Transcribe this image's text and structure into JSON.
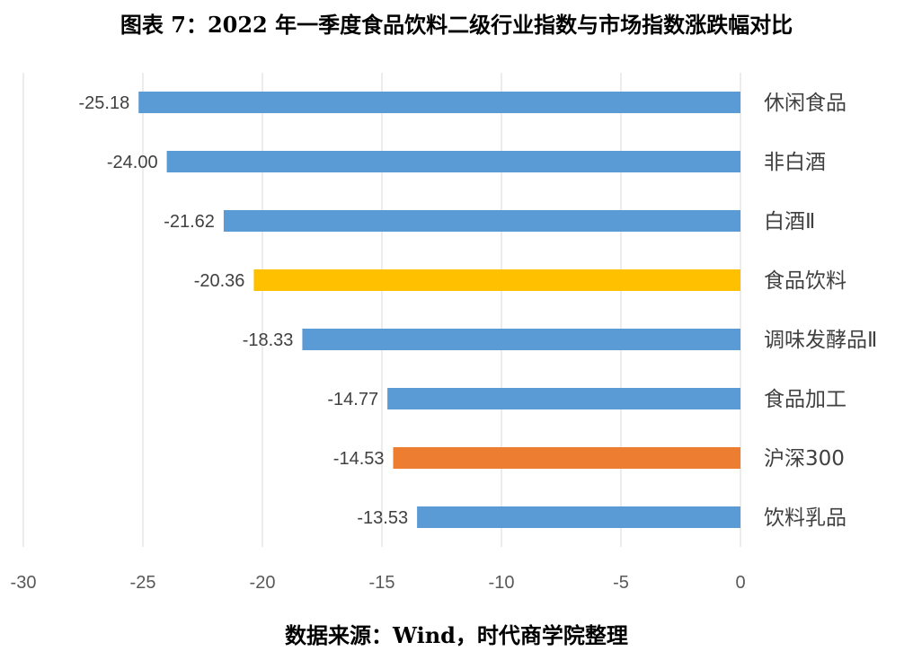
{
  "title": "图表 7：2022 年一季度食品饮料二级行业指数与市场指数涨跌幅对比",
  "source": "数据来源：Wind，时代商学院整理",
  "colors": {
    "default_bar": "#5B9BD5",
    "highlight_sector": "#FFC000",
    "highlight_market": "#ED7D31",
    "gridline": "#D9D9D9"
  },
  "chart_data": {
    "type": "bar",
    "orientation": "horizontal",
    "categories": [
      "休闲食品",
      "非白酒",
      "白酒Ⅱ",
      "食品饮料",
      "调味发酵品Ⅱ",
      "食品加工",
      "沪深300",
      "饮料乳品"
    ],
    "values": [
      -25.18,
      -24.0,
      -21.62,
      -20.36,
      -18.33,
      -14.77,
      -14.53,
      -13.53
    ],
    "data_labels": [
      "-25.18",
      "-24.00",
      "-21.62",
      "-20.36",
      "-18.33",
      "-14.77",
      "-14.53",
      "-13.53"
    ],
    "bar_colors": [
      "#5B9BD5",
      "#5B9BD5",
      "#5B9BD5",
      "#FFC000",
      "#5B9BD5",
      "#5B9BD5",
      "#ED7D31",
      "#5B9BD5"
    ],
    "xlim": [
      -30,
      0
    ],
    "xticks": [
      -30,
      -25,
      -20,
      -15,
      -10,
      -5,
      0
    ],
    "xtick_labels": [
      "-30",
      "-25",
      "-20",
      "-15",
      "-10",
      "-5",
      "0"
    ],
    "category_axis_side": "right",
    "grid": true,
    "legend": "none",
    "title": "图表 7：2022 年一季度食品饮料二级行业指数与市场指数涨跌幅对比",
    "xlabel": "",
    "ylabel": ""
  }
}
